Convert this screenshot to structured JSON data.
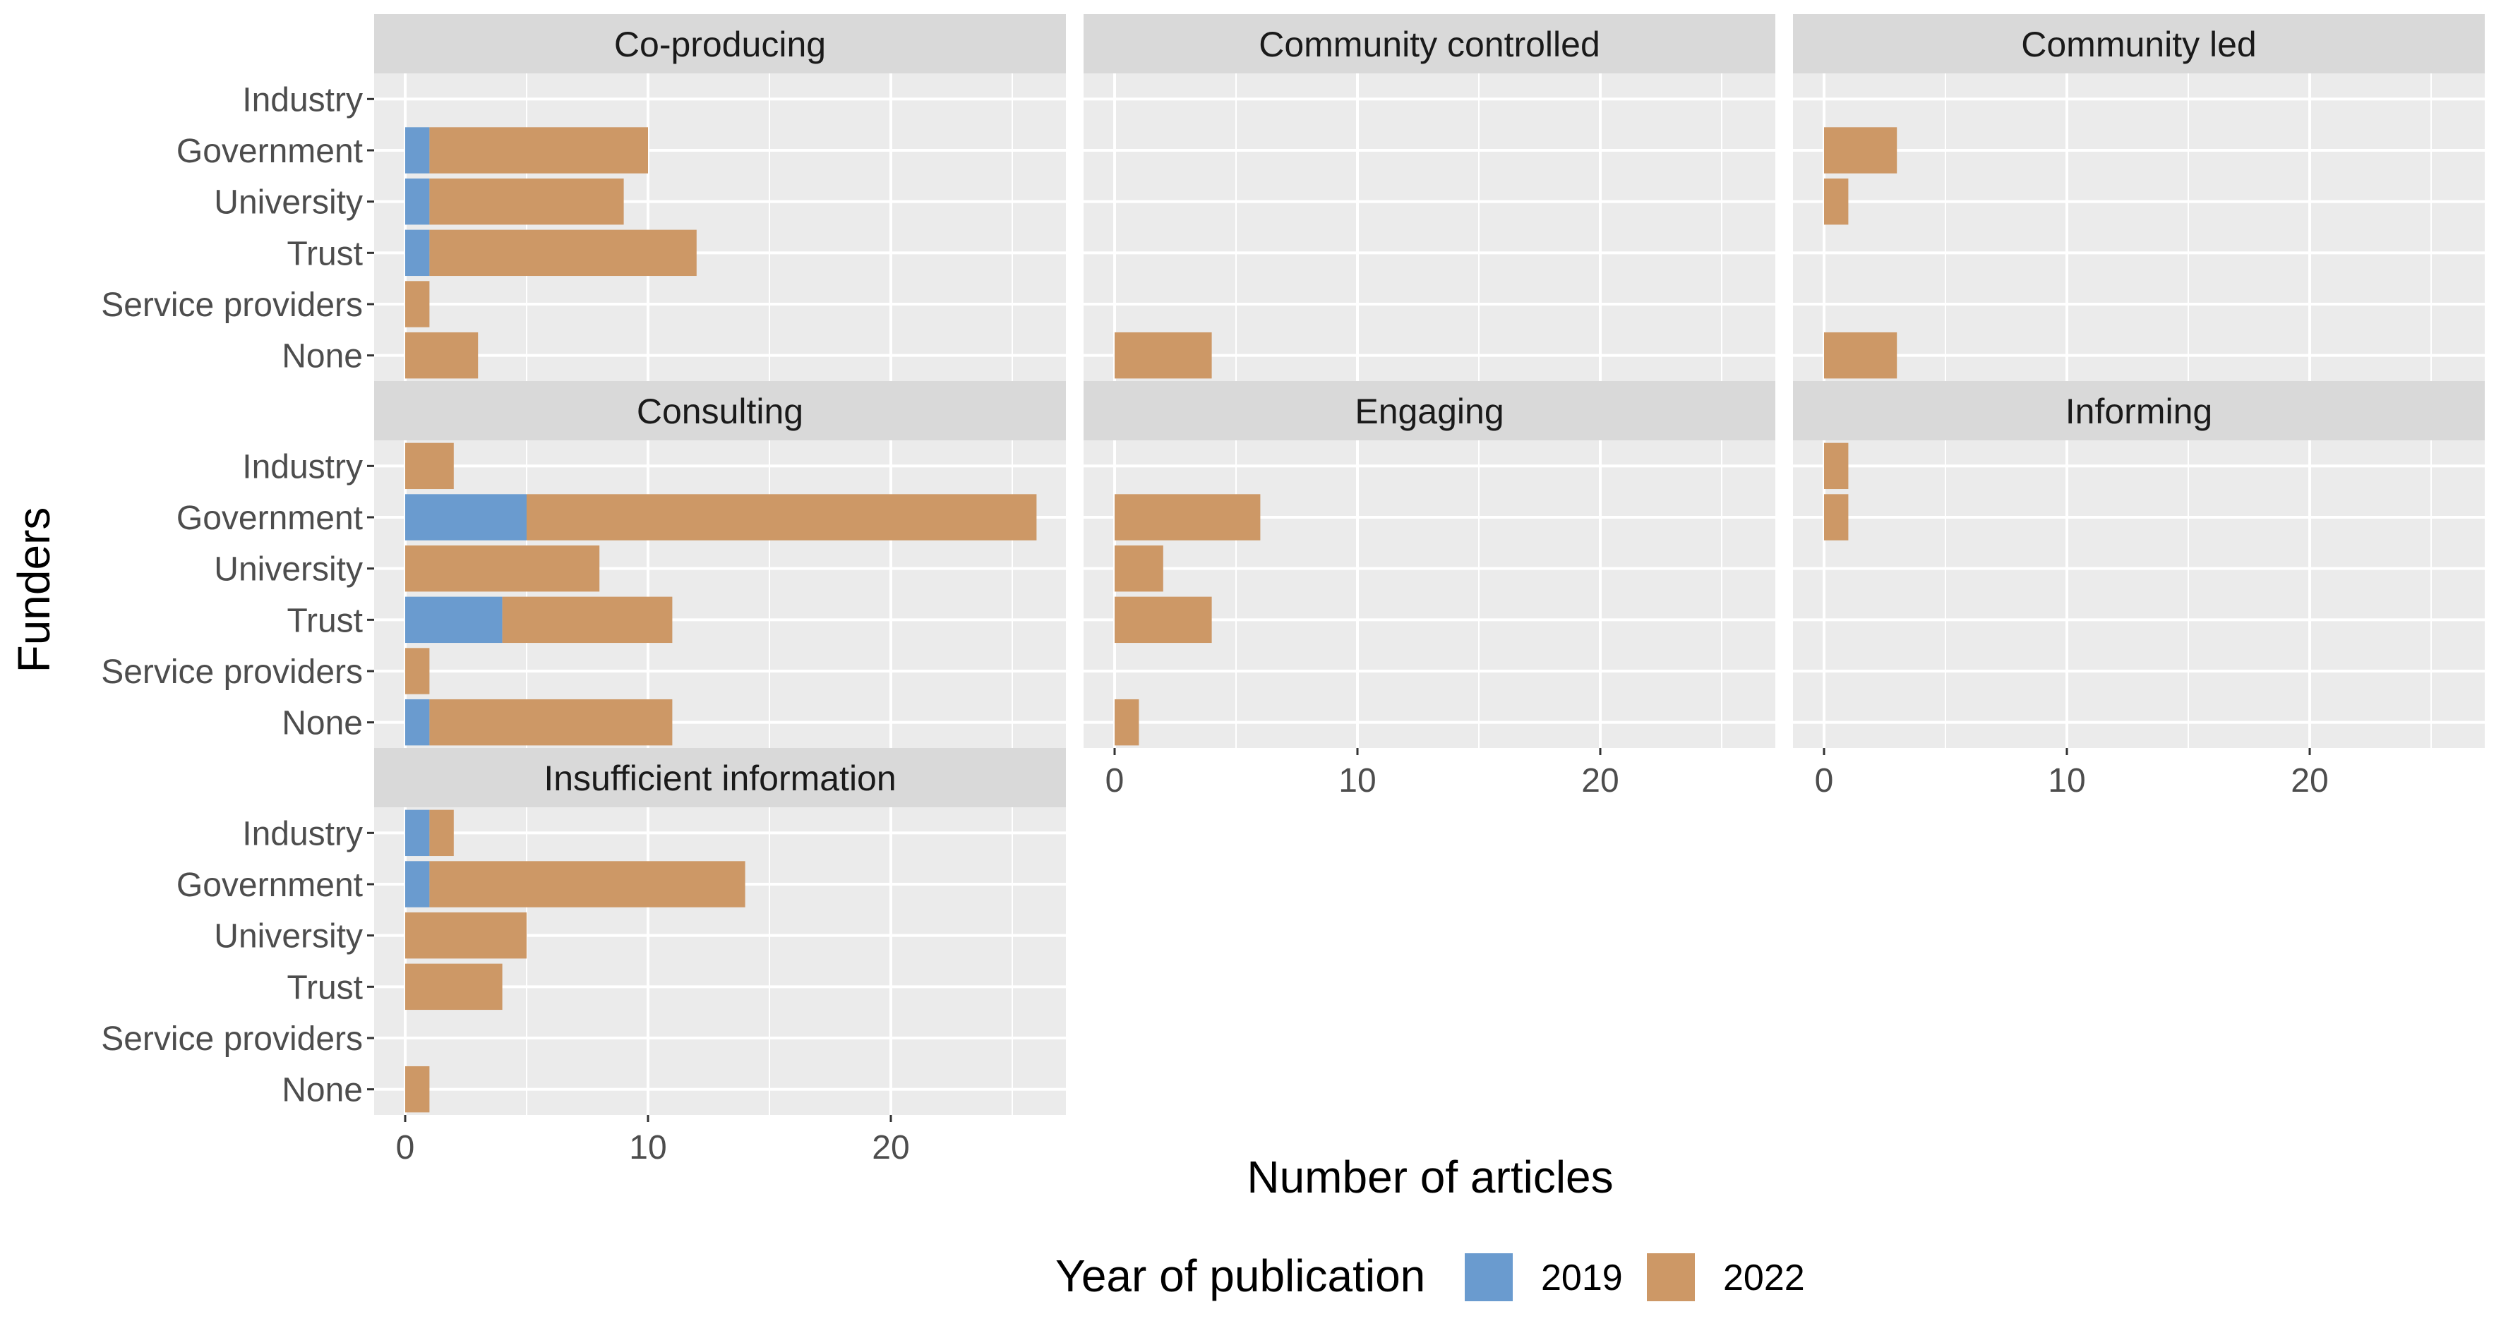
{
  "chart_data": {
    "type": "bar",
    "orientation": "horizontal",
    "stacked": true,
    "facet_layout": "3x3 grid, 7 panels",
    "xlabel": "Number of articles",
    "ylabel": "Funders",
    "xlim": [
      0,
      27
    ],
    "x_ticks": [
      0,
      10,
      20
    ],
    "categories": [
      "Industry",
      "Government",
      "University",
      "Trust",
      "Service providers",
      "None"
    ],
    "grid": true,
    "legend": {
      "title": "Year of publication",
      "position": "bottom",
      "entries": [
        "2019",
        "2022"
      ]
    },
    "colors": {
      "2019": "#6a9bcf",
      "2022": "#cd9866",
      "panel_bg": "#ebebeb",
      "strip_bg": "#d9d9d9",
      "grid": "#ffffff"
    },
    "panels": [
      {
        "title": "Co-producing",
        "series": [
          {
            "name": "2019",
            "values": [
              0,
              1,
              1,
              1,
              0,
              0
            ]
          },
          {
            "name": "2022",
            "values": [
              0,
              9,
              8,
              11,
              1,
              3
            ]
          }
        ]
      },
      {
        "title": "Community controlled",
        "series": [
          {
            "name": "2019",
            "values": [
              0,
              0,
              0,
              0,
              0,
              0
            ]
          },
          {
            "name": "2022",
            "values": [
              0,
              0,
              0,
              0,
              0,
              4
            ]
          }
        ]
      },
      {
        "title": "Community led",
        "series": [
          {
            "name": "2019",
            "values": [
              0,
              0,
              0,
              0,
              0,
              0
            ]
          },
          {
            "name": "2022",
            "values": [
              0,
              3,
              1,
              0,
              0,
              3
            ]
          }
        ]
      },
      {
        "title": "Consulting",
        "series": [
          {
            "name": "2019",
            "values": [
              0,
              5,
              0,
              4,
              0,
              1
            ]
          },
          {
            "name": "2022",
            "values": [
              2,
              21,
              8,
              7,
              1,
              10
            ]
          }
        ]
      },
      {
        "title": "Engaging",
        "series": [
          {
            "name": "2019",
            "values": [
              0,
              0,
              0,
              0,
              0,
              0
            ]
          },
          {
            "name": "2022",
            "values": [
              0,
              6,
              2,
              4,
              0,
              1
            ]
          }
        ]
      },
      {
        "title": "Informing",
        "series": [
          {
            "name": "2019",
            "values": [
              0,
              0,
              0,
              0,
              0,
              0
            ]
          },
          {
            "name": "2022",
            "values": [
              1,
              1,
              0,
              0,
              0,
              0
            ]
          }
        ]
      },
      {
        "title": "Insufficient information",
        "series": [
          {
            "name": "2019",
            "values": [
              1,
              1,
              0,
              0,
              0,
              0
            ]
          },
          {
            "name": "2022",
            "values": [
              1,
              13,
              5,
              4,
              0,
              1
            ]
          }
        ]
      }
    ]
  }
}
